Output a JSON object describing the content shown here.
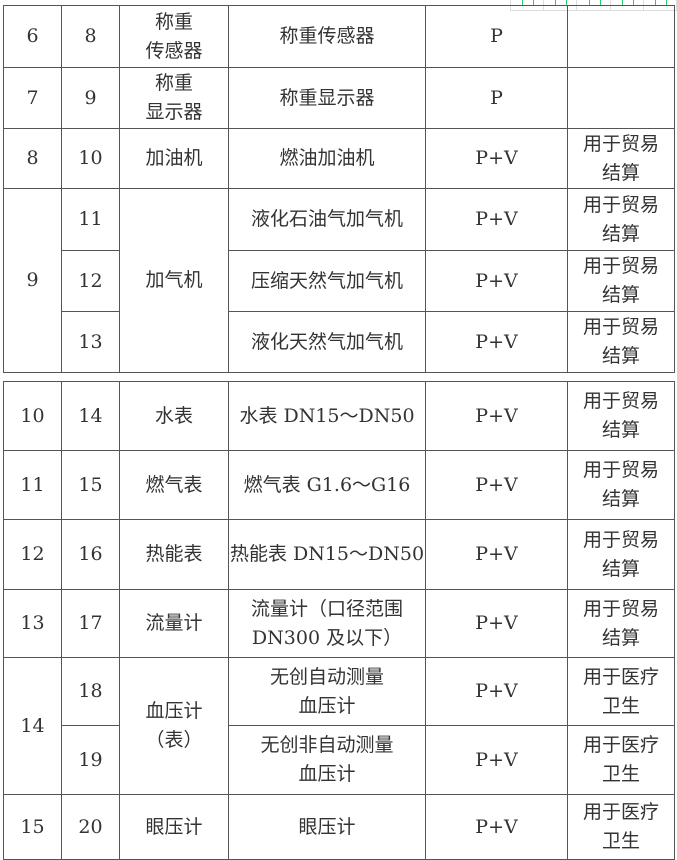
{
  "toolbar": {
    "icons": [
      "document-icon",
      "expand-icon",
      "home-icon",
      "window-icon",
      "settings-icon"
    ],
    "accent": "#2ecc71"
  },
  "table1": [
    {
      "seq": "6",
      "no": "8",
      "cat": "称重\n传感器",
      "name": "称重传感器",
      "mode": "P",
      "note": ""
    },
    {
      "seq": "7",
      "no": "9",
      "cat": "称重\n显示器",
      "name": "称重显示器",
      "mode": "P",
      "note": ""
    },
    {
      "seq": "8",
      "no": "10",
      "cat": "加油机",
      "name": "燃油加油机",
      "mode": "P+V",
      "note": "用于贸易\n结算"
    },
    {
      "seq": "9",
      "no": "11",
      "cat": "加气机",
      "name": "液化石油气加气机",
      "mode": "P+V",
      "note": "用于贸易\n结算"
    },
    {
      "no": "12",
      "name": "压缩天然气加气机",
      "mode": "P+V",
      "note": "用于贸易\n结算"
    },
    {
      "no": "13",
      "name": "液化天然气加气机",
      "mode": "P+V",
      "note": "用于贸易\n结算"
    }
  ],
  "table2": [
    {
      "seq": "10",
      "no": "14",
      "cat": "水表",
      "name": "水表 DN15～DN50",
      "mode": "P+V",
      "note": "用于贸易\n结算"
    },
    {
      "seq": "11",
      "no": "15",
      "cat": "燃气表",
      "name": "燃气表 G1.6～G16",
      "mode": "P+V",
      "note": "用于贸易\n结算"
    },
    {
      "seq": "12",
      "no": "16",
      "cat": "热能表",
      "name": "热能表 DN15～DN50",
      "mode": "P+V",
      "note": "用于贸易\n结算"
    },
    {
      "seq": "13",
      "no": "17",
      "cat": "流量计",
      "name": "流量计（口径范围\nDN300 及以下）",
      "mode": "P+V",
      "note": "用于贸易\n结算"
    },
    {
      "seq": "14",
      "no": "18",
      "cat": "血压计\n（表）",
      "name": "无创自动测量\n血压计",
      "mode": "P+V",
      "note": "用于医疗\n卫生"
    },
    {
      "no": "19",
      "name": "无创非自动测量\n血压计",
      "mode": "P+V",
      "note": "用于医疗\n卫生"
    },
    {
      "seq": "15",
      "no": "20",
      "cat": "眼压计",
      "name": "眼压计",
      "mode": "P+V",
      "note": "用于医疗\n卫生"
    }
  ]
}
